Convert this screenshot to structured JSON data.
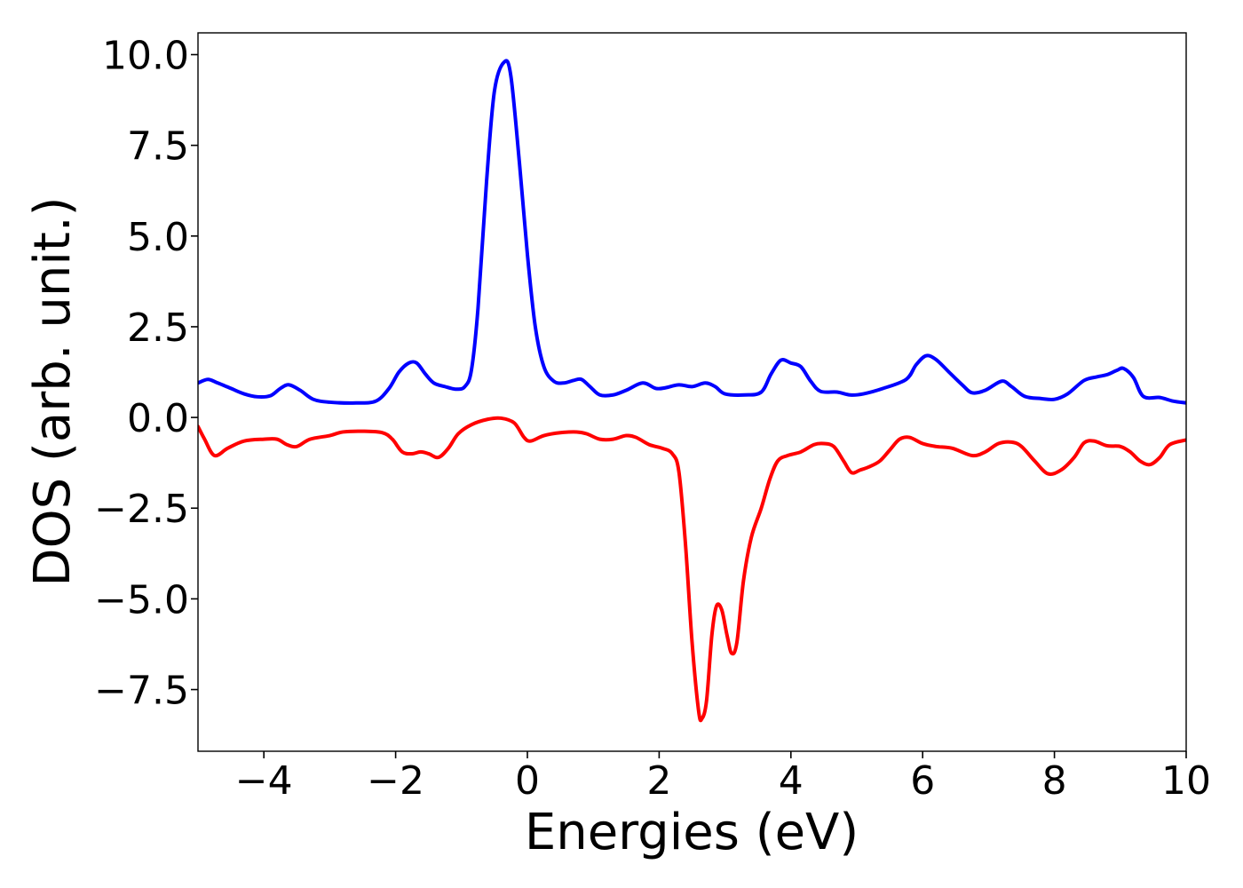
{
  "chart_data": {
    "type": "line",
    "xlabel": "Energies (eV)",
    "ylabel": "DOS (arb. unit.)",
    "xlim": [
      -5,
      10
    ],
    "ylim": [
      -9.2,
      10.6
    ],
    "xticks": [
      -4,
      -2,
      0,
      2,
      4,
      6,
      8,
      10
    ],
    "xtick_labels": [
      "−4",
      "−2",
      "0",
      "2",
      "4",
      "6",
      "8",
      "10"
    ],
    "yticks": [
      10.0,
      7.5,
      5.0,
      2.5,
      0.0,
      -2.5,
      -5.0,
      -7.5
    ],
    "ytick_labels": [
      "10.0",
      "7.5",
      "5.0",
      "2.5",
      "0.0",
      "−2.5",
      "−5.0",
      "−7.5"
    ],
    "grid": false,
    "legend": "none",
    "series": [
      {
        "color": "#0000ff",
        "points": [
          [
            -5.0,
            0.95
          ],
          [
            -4.85,
            1.05
          ],
          [
            -4.7,
            0.95
          ],
          [
            -4.5,
            0.8
          ],
          [
            -4.3,
            0.65
          ],
          [
            -4.1,
            0.57
          ],
          [
            -3.9,
            0.6
          ],
          [
            -3.75,
            0.8
          ],
          [
            -3.62,
            0.9
          ],
          [
            -3.45,
            0.75
          ],
          [
            -3.25,
            0.5
          ],
          [
            -3.0,
            0.42
          ],
          [
            -2.6,
            0.4
          ],
          [
            -2.3,
            0.45
          ],
          [
            -2.1,
            0.8
          ],
          [
            -1.95,
            1.25
          ],
          [
            -1.8,
            1.5
          ],
          [
            -1.68,
            1.5
          ],
          [
            -1.55,
            1.2
          ],
          [
            -1.42,
            0.95
          ],
          [
            -1.25,
            0.85
          ],
          [
            -1.08,
            0.78
          ],
          [
            -0.95,
            0.85
          ],
          [
            -0.85,
            1.3
          ],
          [
            -0.75,
            3.0
          ],
          [
            -0.62,
            6.5
          ],
          [
            -0.5,
            9.0
          ],
          [
            -0.35,
            9.8
          ],
          [
            -0.25,
            9.4
          ],
          [
            -0.12,
            7.0
          ],
          [
            0.0,
            4.5
          ],
          [
            0.12,
            2.5
          ],
          [
            0.25,
            1.4
          ],
          [
            0.4,
            1.0
          ],
          [
            0.55,
            0.95
          ],
          [
            0.7,
            1.02
          ],
          [
            0.82,
            1.05
          ],
          [
            0.95,
            0.85
          ],
          [
            1.1,
            0.62
          ],
          [
            1.3,
            0.62
          ],
          [
            1.5,
            0.75
          ],
          [
            1.75,
            0.95
          ],
          [
            1.95,
            0.8
          ],
          [
            2.1,
            0.82
          ],
          [
            2.3,
            0.9
          ],
          [
            2.5,
            0.85
          ],
          [
            2.7,
            0.95
          ],
          [
            2.85,
            0.85
          ],
          [
            3.0,
            0.65
          ],
          [
            3.3,
            0.62
          ],
          [
            3.55,
            0.7
          ],
          [
            3.7,
            1.2
          ],
          [
            3.85,
            1.58
          ],
          [
            4.0,
            1.5
          ],
          [
            4.15,
            1.4
          ],
          [
            4.3,
            1.0
          ],
          [
            4.45,
            0.72
          ],
          [
            4.7,
            0.7
          ],
          [
            4.9,
            0.62
          ],
          [
            5.1,
            0.65
          ],
          [
            5.4,
            0.8
          ],
          [
            5.75,
            1.05
          ],
          [
            5.9,
            1.45
          ],
          [
            6.05,
            1.7
          ],
          [
            6.2,
            1.6
          ],
          [
            6.4,
            1.25
          ],
          [
            6.6,
            0.9
          ],
          [
            6.75,
            0.68
          ],
          [
            6.95,
            0.75
          ],
          [
            7.2,
            1.0
          ],
          [
            7.35,
            0.85
          ],
          [
            7.55,
            0.58
          ],
          [
            7.8,
            0.52
          ],
          [
            8.0,
            0.5
          ],
          [
            8.2,
            0.65
          ],
          [
            8.45,
            1.02
          ],
          [
            8.65,
            1.12
          ],
          [
            8.8,
            1.18
          ],
          [
            8.95,
            1.3
          ],
          [
            9.05,
            1.35
          ],
          [
            9.2,
            1.1
          ],
          [
            9.35,
            0.58
          ],
          [
            9.6,
            0.55
          ],
          [
            9.8,
            0.45
          ],
          [
            10.0,
            0.4
          ]
        ]
      },
      {
        "color": "#ff0000",
        "points": [
          [
            -5.0,
            -0.25
          ],
          [
            -4.9,
            -0.6
          ],
          [
            -4.75,
            -1.05
          ],
          [
            -4.55,
            -0.85
          ],
          [
            -4.3,
            -0.65
          ],
          [
            -4.0,
            -0.6
          ],
          [
            -3.8,
            -0.6
          ],
          [
            -3.65,
            -0.75
          ],
          [
            -3.5,
            -0.8
          ],
          [
            -3.3,
            -0.6
          ],
          [
            -3.0,
            -0.5
          ],
          [
            -2.8,
            -0.4
          ],
          [
            -2.5,
            -0.38
          ],
          [
            -2.2,
            -0.42
          ],
          [
            -2.05,
            -0.6
          ],
          [
            -1.9,
            -0.95
          ],
          [
            -1.75,
            -1.0
          ],
          [
            -1.62,
            -0.95
          ],
          [
            -1.5,
            -1.0
          ],
          [
            -1.35,
            -1.1
          ],
          [
            -1.2,
            -0.85
          ],
          [
            -1.05,
            -0.45
          ],
          [
            -0.85,
            -0.2
          ],
          [
            -0.6,
            -0.05
          ],
          [
            -0.4,
            -0.02
          ],
          [
            -0.2,
            -0.15
          ],
          [
            -0.05,
            -0.55
          ],
          [
            0.05,
            -0.65
          ],
          [
            0.25,
            -0.5
          ],
          [
            0.5,
            -0.42
          ],
          [
            0.75,
            -0.4
          ],
          [
            0.9,
            -0.45
          ],
          [
            1.1,
            -0.6
          ],
          [
            1.3,
            -0.6
          ],
          [
            1.5,
            -0.5
          ],
          [
            1.65,
            -0.55
          ],
          [
            1.85,
            -0.75
          ],
          [
            2.05,
            -0.85
          ],
          [
            2.2,
            -1.0
          ],
          [
            2.3,
            -1.5
          ],
          [
            2.4,
            -3.5
          ],
          [
            2.5,
            -6.2
          ],
          [
            2.6,
            -8.1
          ],
          [
            2.65,
            -8.3
          ],
          [
            2.72,
            -7.8
          ],
          [
            2.8,
            -6.0
          ],
          [
            2.87,
            -5.2
          ],
          [
            2.95,
            -5.3
          ],
          [
            3.03,
            -6.0
          ],
          [
            3.1,
            -6.5
          ],
          [
            3.18,
            -6.2
          ],
          [
            3.28,
            -4.5
          ],
          [
            3.4,
            -3.3
          ],
          [
            3.55,
            -2.5
          ],
          [
            3.68,
            -1.7
          ],
          [
            3.8,
            -1.2
          ],
          [
            3.95,
            -1.05
          ],
          [
            4.15,
            -0.95
          ],
          [
            4.35,
            -0.75
          ],
          [
            4.5,
            -0.72
          ],
          [
            4.65,
            -0.8
          ],
          [
            4.8,
            -1.2
          ],
          [
            4.92,
            -1.52
          ],
          [
            5.05,
            -1.45
          ],
          [
            5.2,
            -1.35
          ],
          [
            5.35,
            -1.2
          ],
          [
            5.5,
            -0.9
          ],
          [
            5.65,
            -0.6
          ],
          [
            5.8,
            -0.55
          ],
          [
            6.0,
            -0.72
          ],
          [
            6.2,
            -0.8
          ],
          [
            6.45,
            -0.85
          ],
          [
            6.75,
            -1.05
          ],
          [
            6.95,
            -0.95
          ],
          [
            7.15,
            -0.72
          ],
          [
            7.35,
            -0.68
          ],
          [
            7.5,
            -0.8
          ],
          [
            7.7,
            -1.2
          ],
          [
            7.9,
            -1.55
          ],
          [
            8.1,
            -1.45
          ],
          [
            8.3,
            -1.1
          ],
          [
            8.45,
            -0.7
          ],
          [
            8.6,
            -0.65
          ],
          [
            8.8,
            -0.78
          ],
          [
            9.0,
            -0.8
          ],
          [
            9.15,
            -0.95
          ],
          [
            9.3,
            -1.2
          ],
          [
            9.45,
            -1.3
          ],
          [
            9.6,
            -1.1
          ],
          [
            9.75,
            -0.75
          ],
          [
            10.0,
            -0.62
          ]
        ]
      }
    ]
  }
}
